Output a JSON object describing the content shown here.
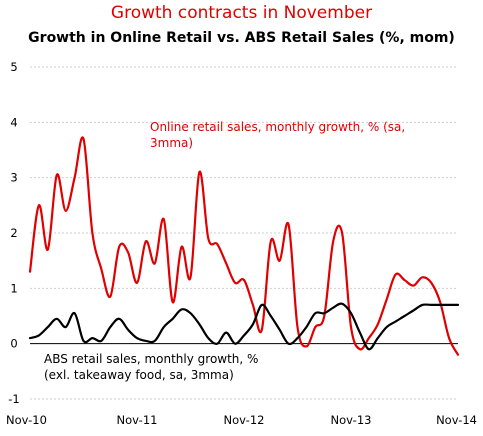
{
  "title": "Growth contracts in November",
  "subtitle": "Growth in Online Retail vs. ABS Retail Sales (%, mom)",
  "colors": {
    "title": "#e00000",
    "online": "#e00000",
    "abs": "#000000",
    "grid": "#cfcfcf"
  },
  "chart_data": {
    "type": "line",
    "title": "Growth in Online Retail vs. ABS Retail Sales (%, mom)",
    "xlabel": "",
    "ylabel": "",
    "ylim": [
      -1,
      5
    ],
    "yticks": [
      -1,
      0,
      1,
      2,
      3,
      4,
      5
    ],
    "xlim": [
      "2010-11",
      "2014-11"
    ],
    "xticks": [
      "Nov-10",
      "Nov-11",
      "Nov-12",
      "Nov-13",
      "Nov-14"
    ],
    "grid": "horizontal",
    "annotations": [
      {
        "series": "Online retail sales, monthly growth, % (sa, 3mma)",
        "lines": [
          "Online retail sales, monthly growth, % (sa,",
          "3mma)"
        ]
      },
      {
        "series": "ABS retail sales, monthly growth, % (exl. takeaway food, sa, 3mma)",
        "lines": [
          "ABS retail sales, monthly growth, %",
          "(exl. takeaway food, sa, 3mma)"
        ]
      }
    ],
    "series": [
      {
        "name": "Online retail sales, monthly growth, % (sa, 3mma)",
        "color": "#e00000",
        "x": [
          "2010-11",
          "2010-12",
          "2011-01",
          "2011-02",
          "2011-03",
          "2011-04",
          "2011-05",
          "2011-06",
          "2011-07",
          "2011-08",
          "2011-09",
          "2011-10",
          "2011-11",
          "2011-12",
          "2012-01",
          "2012-02",
          "2012-03",
          "2012-04",
          "2012-05",
          "2012-06",
          "2012-07",
          "2012-08",
          "2012-09",
          "2012-10",
          "2012-11",
          "2012-12",
          "2013-01",
          "2013-02",
          "2013-03",
          "2013-04",
          "2013-05",
          "2013-06",
          "2013-07",
          "2013-08",
          "2013-09",
          "2013-10",
          "2013-11",
          "2013-12",
          "2014-01",
          "2014-02",
          "2014-03",
          "2014-04",
          "2014-05",
          "2014-06",
          "2014-07",
          "2014-08",
          "2014-09",
          "2014-10",
          "2014-11"
        ],
        "values": [
          1.3,
          2.5,
          1.7,
          3.05,
          2.4,
          3.0,
          3.7,
          2.0,
          1.35,
          0.85,
          1.75,
          1.65,
          1.1,
          1.85,
          1.45,
          2.25,
          0.75,
          1.75,
          1.2,
          3.1,
          1.9,
          1.8,
          1.45,
          1.1,
          1.15,
          0.7,
          0.25,
          1.85,
          1.5,
          2.15,
          0.3,
          -0.05,
          0.3,
          0.5,
          1.85,
          2.0,
          0.3,
          -0.1,
          0.1,
          0.35,
          0.8,
          1.25,
          1.15,
          1.05,
          1.2,
          1.1,
          0.75,
          0.1,
          -0.2
        ]
      },
      {
        "name": "ABS retail sales, monthly growth, % (exl. takeaway food, sa, 3mma)",
        "color": "#000000",
        "x": [
          "2010-11",
          "2010-12",
          "2011-01",
          "2011-02",
          "2011-03",
          "2011-04",
          "2011-05",
          "2011-06",
          "2011-07",
          "2011-08",
          "2011-09",
          "2011-10",
          "2011-11",
          "2011-12",
          "2012-01",
          "2012-02",
          "2012-03",
          "2012-04",
          "2012-05",
          "2012-06",
          "2012-07",
          "2012-08",
          "2012-09",
          "2012-10",
          "2012-11",
          "2012-12",
          "2013-01",
          "2013-02",
          "2013-03",
          "2013-04",
          "2013-05",
          "2013-06",
          "2013-07",
          "2013-08",
          "2013-09",
          "2013-10",
          "2013-11",
          "2013-12",
          "2014-01",
          "2014-02",
          "2014-03",
          "2014-04",
          "2014-05",
          "2014-06",
          "2014-07",
          "2014-08",
          "2014-09",
          "2014-10",
          "2014-11"
        ],
        "values": [
          0.1,
          0.15,
          0.3,
          0.45,
          0.3,
          0.55,
          0.05,
          0.1,
          0.05,
          0.3,
          0.45,
          0.25,
          0.1,
          0.05,
          0.05,
          0.3,
          0.45,
          0.62,
          0.55,
          0.35,
          0.1,
          0.0,
          0.2,
          0.0,
          0.15,
          0.35,
          0.7,
          0.5,
          0.25,
          0.0,
          0.1,
          0.3,
          0.55,
          0.55,
          0.65,
          0.72,
          0.55,
          0.2,
          -0.1,
          0.1,
          0.3,
          0.4,
          0.5,
          0.6,
          0.7,
          0.7,
          0.7,
          0.7,
          0.7
        ]
      }
    ]
  }
}
